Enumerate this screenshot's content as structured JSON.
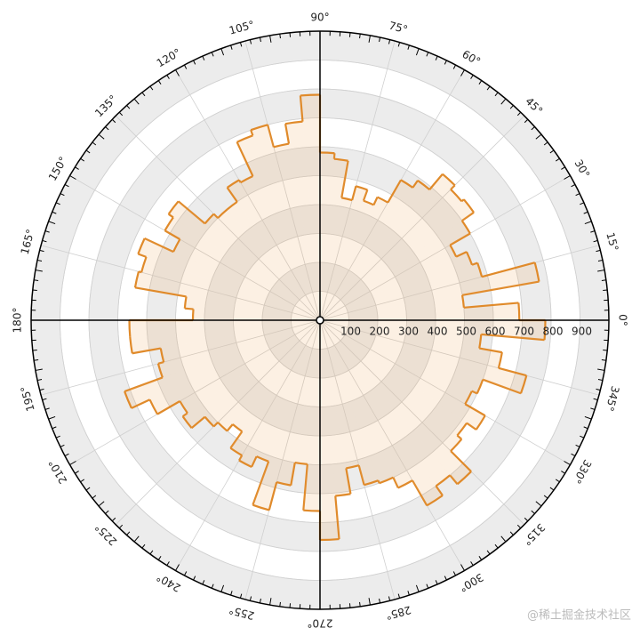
{
  "chart_data": {
    "type": "polar_histogram",
    "bins": [
      0,
      5,
      10,
      15,
      20,
      25,
      30,
      35,
      40,
      45,
      50,
      55,
      60,
      65,
      70,
      75,
      80,
      85,
      90,
      95,
      100,
      105,
      110,
      115,
      120,
      125,
      130,
      135,
      140,
      145,
      150,
      155,
      160,
      165,
      170,
      175,
      180,
      185,
      190,
      195,
      200,
      205,
      210,
      215,
      220,
      225,
      230,
      235,
      240,
      245,
      250,
      255,
      260,
      265,
      270,
      275,
      280,
      285,
      290,
      295,
      300,
      305,
      310,
      315,
      320,
      325,
      330,
      335,
      340,
      345,
      350,
      355,
      360
    ],
    "values": [
      690,
      500,
      770,
      580,
      560,
      520,
      600,
      650,
      640,
      660,
      590,
      560,
      470,
      440,
      480,
      430,
      560,
      580,
      780,
      690,
      620,
      700,
      680,
      550,
      560,
      500,
      500,
      520,
      640,
      620,
      560,
      670,
      640,
      650,
      470,
      440,
      660,
      660,
      560,
      580,
      720,
      650,
      560,
      580,
      520,
      500,
      470,
      540,
      560,
      520,
      680,
      580,
      500,
      660,
      760,
      610,
      520,
      590,
      600,
      640,
      740,
      700,
      740,
      640,
      620,
      660,
      580,
      600,
      740,
      640,
      560,
      780
    ],
    "color": "#e08a2a",
    "rlim": [
      0,
      1000
    ],
    "rticks": [
      100,
      200,
      300,
      400,
      500,
      600,
      700,
      800,
      900
    ],
    "thetaticks": [
      {
        "value": 0,
        "label": "0°"
      },
      {
        "value": 15,
        "label": "15°"
      },
      {
        "value": 30,
        "label": "30°"
      },
      {
        "value": 45,
        "label": "45°"
      },
      {
        "value": 60,
        "label": "60°"
      },
      {
        "value": 75,
        "label": "75°"
      },
      {
        "value": 90,
        "label": "90°"
      },
      {
        "value": 105,
        "label": "105°"
      },
      {
        "value": 120,
        "label": "120°"
      },
      {
        "value": 135,
        "label": "135°"
      },
      {
        "value": 150,
        "label": "150°"
      },
      {
        "value": 165,
        "label": "165°"
      },
      {
        "value": 180,
        "label": "180°"
      },
      {
        "value": 195,
        "label": "195°"
      },
      {
        "value": 210,
        "label": "210°"
      },
      {
        "value": 225,
        "label": "225°"
      },
      {
        "value": 240,
        "label": "240°"
      },
      {
        "value": 255,
        "label": "255°"
      },
      {
        "value": 270,
        "label": "270°"
      },
      {
        "value": 285,
        "label": "285°"
      },
      {
        "value": 300,
        "label": "300°"
      },
      {
        "value": 315,
        "label": "315°"
      },
      {
        "value": 330,
        "label": "330°"
      },
      {
        "value": 345,
        "label": "345°"
      }
    ],
    "watermark": "@稀土掘金技术社区"
  }
}
